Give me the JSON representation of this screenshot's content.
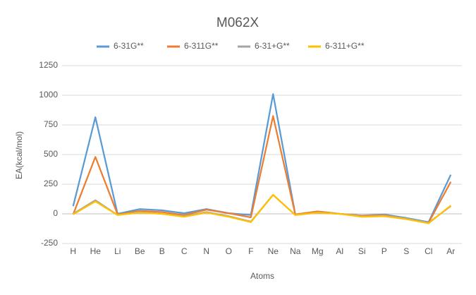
{
  "chart_data": {
    "type": "line",
    "title": "M062X",
    "x_label": "Atoms",
    "y_label": "EA(kcal/mol)",
    "categories": [
      "H",
      "He",
      "Li",
      "Be",
      "B",
      "C",
      "N",
      "O",
      "F",
      "Ne",
      "Na",
      "Mg",
      "Al",
      "Si",
      "P",
      "S",
      "Cl",
      "Ar"
    ],
    "series": [
      {
        "name": "6-31G**",
        "color": "#5b9bd5",
        "values": [
          65,
          815,
          0,
          40,
          30,
          5,
          40,
          5,
          -10,
          1010,
          -5,
          20,
          0,
          -15,
          -5,
          -35,
          -70,
          330
        ]
      },
      {
        "name": "6-311G**",
        "color": "#ed7d31",
        "values": [
          -5,
          480,
          -5,
          25,
          15,
          -10,
          35,
          5,
          -30,
          825,
          -5,
          20,
          0,
          -15,
          -10,
          -40,
          -75,
          270
        ]
      },
      {
        "name": "6-31+G**",
        "color": "#a5a5a5",
        "values": [
          0,
          115,
          -10,
          15,
          0,
          -20,
          15,
          -20,
          -65,
          160,
          -10,
          10,
          0,
          -20,
          -15,
          -40,
          -75,
          65
        ]
      },
      {
        "name": "6-311+G**",
        "color": "#ffc000",
        "values": [
          -5,
          105,
          -10,
          10,
          0,
          -25,
          10,
          -25,
          -70,
          160,
          -10,
          10,
          0,
          -25,
          -20,
          -45,
          -80,
          70
        ]
      }
    ],
    "ylim": [
      -250,
      1250
    ],
    "yticks": [
      -250,
      0,
      250,
      500,
      750,
      1000,
      1250
    ],
    "grid": true,
    "legend": "top"
  }
}
